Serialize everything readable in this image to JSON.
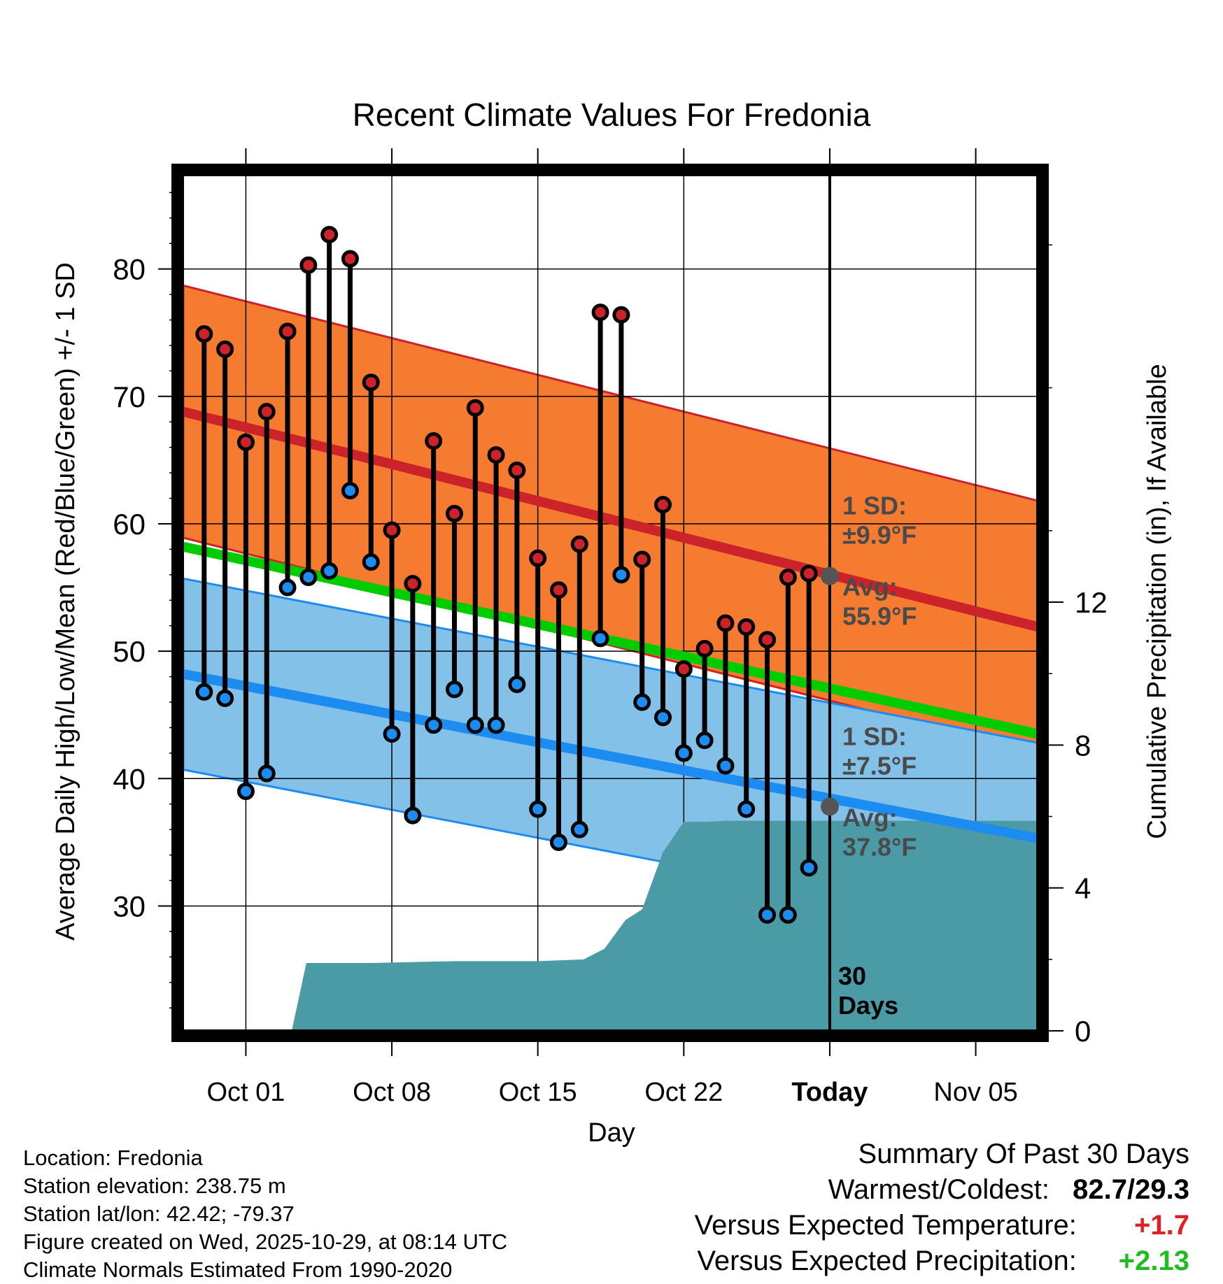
{
  "chart_data": {
    "type": "line",
    "title": "Recent Climate Values For Fredonia",
    "xlabel": "Day",
    "ylabel": "Average Daily High/Low/Mean (Red/Blue/Green) +/- 1 SD",
    "y2label": "Cumulative Precipitation (in), If Available",
    "xlim": [
      -3,
      38
    ],
    "ylim": [
      20.2,
      87.5
    ],
    "y2lim": [
      0,
      24
    ],
    "yticks": [
      30,
      40,
      50,
      60,
      70,
      80
    ],
    "y2ticks": [
      0,
      4,
      8,
      12
    ],
    "xticks": [
      {
        "day": 0,
        "label": "Oct 01"
      },
      {
        "day": 7,
        "label": "Oct 08"
      },
      {
        "day": 14,
        "label": "Oct 15"
      },
      {
        "day": 21,
        "label": "Oct 22"
      },
      {
        "day": 28,
        "label": "Today"
      },
      {
        "day": 35,
        "label": "Nov 05"
      }
    ],
    "today_day": 28,
    "normals": {
      "high_mean": {
        "start": 68.8,
        "end": 51.9,
        "color": "#cc2229"
      },
      "high_sd": 9.9,
      "low_mean": {
        "start": 48.2,
        "end": 35.3,
        "color": "#1c8cf0"
      },
      "low_sd": 7.5,
      "mean": {
        "start": 58.2,
        "end": 43.5,
        "color": "#00cc00"
      },
      "high_band_color": "#f47b30",
      "low_band_color": "#84c1e8",
      "precip_color": "#4a9ba6"
    },
    "series": [
      {
        "name": "High",
        "color": "#cc2229",
        "days": [
          -2,
          -1,
          0,
          1,
          2,
          3,
          4,
          5,
          6,
          7,
          8,
          9,
          10,
          11,
          12,
          13,
          14,
          15,
          16,
          17,
          18,
          19,
          20,
          21,
          22,
          23,
          24,
          25,
          26,
          27
        ],
        "values": [
          74.9,
          73.7,
          66.4,
          68.8,
          75.1,
          80.3,
          82.7,
          80.8,
          71.1,
          59.5,
          55.3,
          66.5,
          60.8,
          69.1,
          65.4,
          64.2,
          57.3,
          54.8,
          58.4,
          76.6,
          76.4,
          57.2,
          61.5,
          48.6,
          50.2,
          52.2,
          51.9,
          50.9,
          55.8,
          56.1
        ]
      },
      {
        "name": "Low",
        "color": "#1c8cf0",
        "days": [
          -2,
          -1,
          0,
          1,
          2,
          3,
          4,
          5,
          6,
          7,
          8,
          9,
          10,
          11,
          12,
          13,
          14,
          15,
          16,
          17,
          18,
          19,
          20,
          21,
          22,
          23,
          24,
          25,
          26,
          27
        ],
        "values": [
          46.8,
          46.3,
          39.0,
          40.4,
          55.0,
          55.8,
          56.3,
          62.6,
          57.0,
          43.5,
          37.1,
          44.2,
          47.0,
          44.2,
          44.2,
          47.4,
          37.6,
          35.0,
          36.0,
          51.0,
          56.0,
          46.0,
          44.8,
          42.0,
          43.0,
          41.0,
          37.6,
          29.3,
          29.3,
          33.0
        ]
      },
      {
        "name": "Cumulative Precipitation",
        "days": [
          2.2,
          2.9,
          6,
          10,
          14,
          16.2,
          17.2,
          18.2,
          19,
          20,
          21,
          22,
          23,
          27,
          28,
          38
        ],
        "values": [
          0,
          1.9,
          1.9,
          1.95,
          1.95,
          2.0,
          2.3,
          3.1,
          3.4,
          5.0,
          5.85,
          5.85,
          5.88,
          5.88,
          5.88,
          5.88
        ]
      }
    ],
    "annotations": {
      "high_sd_label": "1 SD:",
      "high_sd_value": "±9.9°F",
      "high_avg_label": "Avg:",
      "high_avg_value": "55.9°F",
      "high_avg_at_today": 55.9,
      "low_sd_label": "1 SD:",
      "low_sd_value": "±7.5°F",
      "low_avg_label": "Avg:",
      "low_avg_value": "37.8°F",
      "low_avg_at_today": 37.8,
      "window_label_1": "30",
      "window_label_2": "Days"
    }
  },
  "station_info": [
    "Location: Fredonia",
    "Station elevation: 238.75 m",
    "Station lat/lon: 42.42; -79.37",
    "Figure created on Wed, 2025-10-29, at 08:14 UTC",
    "Climate Normals Estimated From 1990-2020"
  ],
  "summary": {
    "title": "Summary Of Past 30 Days",
    "warmest_coldest_label": "Warmest/Coldest:",
    "warmest": "82.7",
    "slash": "/",
    "coldest": "29.3",
    "temp_label": "Versus Expected Temperature:",
    "temp_value": "+1.7",
    "temp_color": "#dd2222",
    "precip_label": "Versus Expected Precipitation:",
    "precip_value": "+2.13",
    "precip_color": "#22bb22"
  }
}
